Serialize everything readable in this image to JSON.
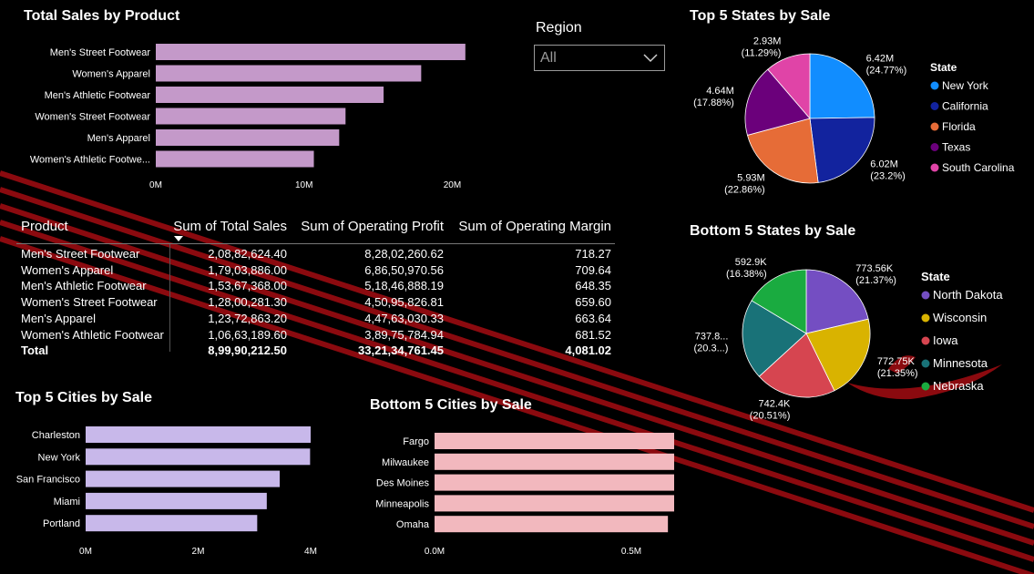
{
  "slicer": {
    "title": "Region",
    "value": "All"
  },
  "table": {
    "headers": [
      "Product",
      "Sum of Total Sales",
      "Sum of Operating Profit",
      "Sum of Operating Margin"
    ],
    "rows": [
      [
        "Men's Street Footwear",
        "2,08,82,624.40",
        "8,28,02,260.62",
        "718.27"
      ],
      [
        "Women's Apparel",
        "1,79,03,886.00",
        "6,86,50,970.56",
        "709.64"
      ],
      [
        "Men's Athletic Footwear",
        "1,53,67,368.00",
        "5,18,46,888.19",
        "648.35"
      ],
      [
        "Women's Street Footwear",
        "1,28,00,281.30",
        "4,50,95,826.81",
        "659.60"
      ],
      [
        "Men's Apparel",
        "1,23,72,863.20",
        "4,47,63,030.33",
        "663.64"
      ],
      [
        "Women's Athletic Footwear",
        "1,06,63,189.60",
        "3,89,75,784.94",
        "681.52"
      ]
    ],
    "total": [
      "Total",
      "8,99,90,212.50",
      "33,21,34,761.45",
      "4,081.02"
    ]
  },
  "chart_data": [
    {
      "type": "bar",
      "orientation": "horizontal",
      "title": "Total Sales by Product",
      "categories": [
        "Men's Street Footwear",
        "Women's Apparel",
        "Men's Athletic Footwear",
        "Women's Street Footwear",
        "Men's Apparel",
        "Women's Athletic Footwe..."
      ],
      "values": [
        20882624.4,
        17903886.0,
        15367368.0,
        12800281.3,
        12372863.2,
        10663189.6
      ],
      "xlim": [
        0,
        22000000
      ],
      "ticks": [
        0,
        10000000,
        20000000
      ],
      "tick_labels": [
        "0M",
        "10M",
        "20M"
      ],
      "color": "#c499c9"
    },
    {
      "type": "pie",
      "title": "Top 5 States by Sale",
      "legend_title": "State",
      "categories": [
        "New York",
        "California",
        "Florida",
        "Texas",
        "South Carolina"
      ],
      "values": [
        6420000,
        6020000,
        5930000,
        4640000,
        2930000
      ],
      "data_labels": [
        "6.42M (24.77%)",
        "6.02M (23.2%)",
        "5.93M (22.86%)",
        "4.64M (17.88%)",
        "2.93M (11.29%)"
      ],
      "colors": [
        "#118dff",
        "#12239e",
        "#e66c37",
        "#6b007b",
        "#e044a7"
      ],
      "legend_position": "right"
    },
    {
      "type": "pie",
      "title": "Bottom 5 States by Sale",
      "legend_title": "State",
      "categories": [
        "North Dakota",
        "Wisconsin",
        "Iowa",
        "Minnesota",
        "Nebraska"
      ],
      "values": [
        773560,
        772750,
        742400,
        737800,
        592900
      ],
      "data_labels": [
        "773.56K (21.37%)",
        "772.75K (21.35%)",
        "742.4K (20.51%)",
        "737.8... (20.3...)",
        "592.9K (16.38%)"
      ],
      "colors": [
        "#744ec2",
        "#d9b300",
        "#d64550",
        "#197278",
        "#1aab40"
      ],
      "legend_position": "right"
    },
    {
      "type": "bar",
      "orientation": "horizontal",
      "title": "Top 5 Cities by Sale",
      "categories": [
        "Charleston",
        "New York",
        "San Francisco",
        "Miami",
        "Portland"
      ],
      "values": [
        4000000,
        3990000,
        3450000,
        3220000,
        3050000
      ],
      "xlim": [
        0,
        4000000
      ],
      "ticks": [
        0,
        2000000,
        4000000
      ],
      "tick_labels": [
        "0M",
        "2M",
        "4M"
      ],
      "color": "#c8b8ea"
    },
    {
      "type": "bar",
      "orientation": "horizontal",
      "title": "Bottom 5 Cities by Sale",
      "categories": [
        "Fargo",
        "Milwaukee",
        "Des Moines",
        "Minneapolis",
        "Omaha"
      ],
      "values": [
        773560,
        772750,
        742400,
        737800,
        592900
      ],
      "xlim": [
        0,
        780000
      ],
      "ticks": [
        0,
        500000
      ],
      "tick_labels": [
        "0.0M",
        "0.5M"
      ],
      "color": "#f2b8be"
    }
  ]
}
